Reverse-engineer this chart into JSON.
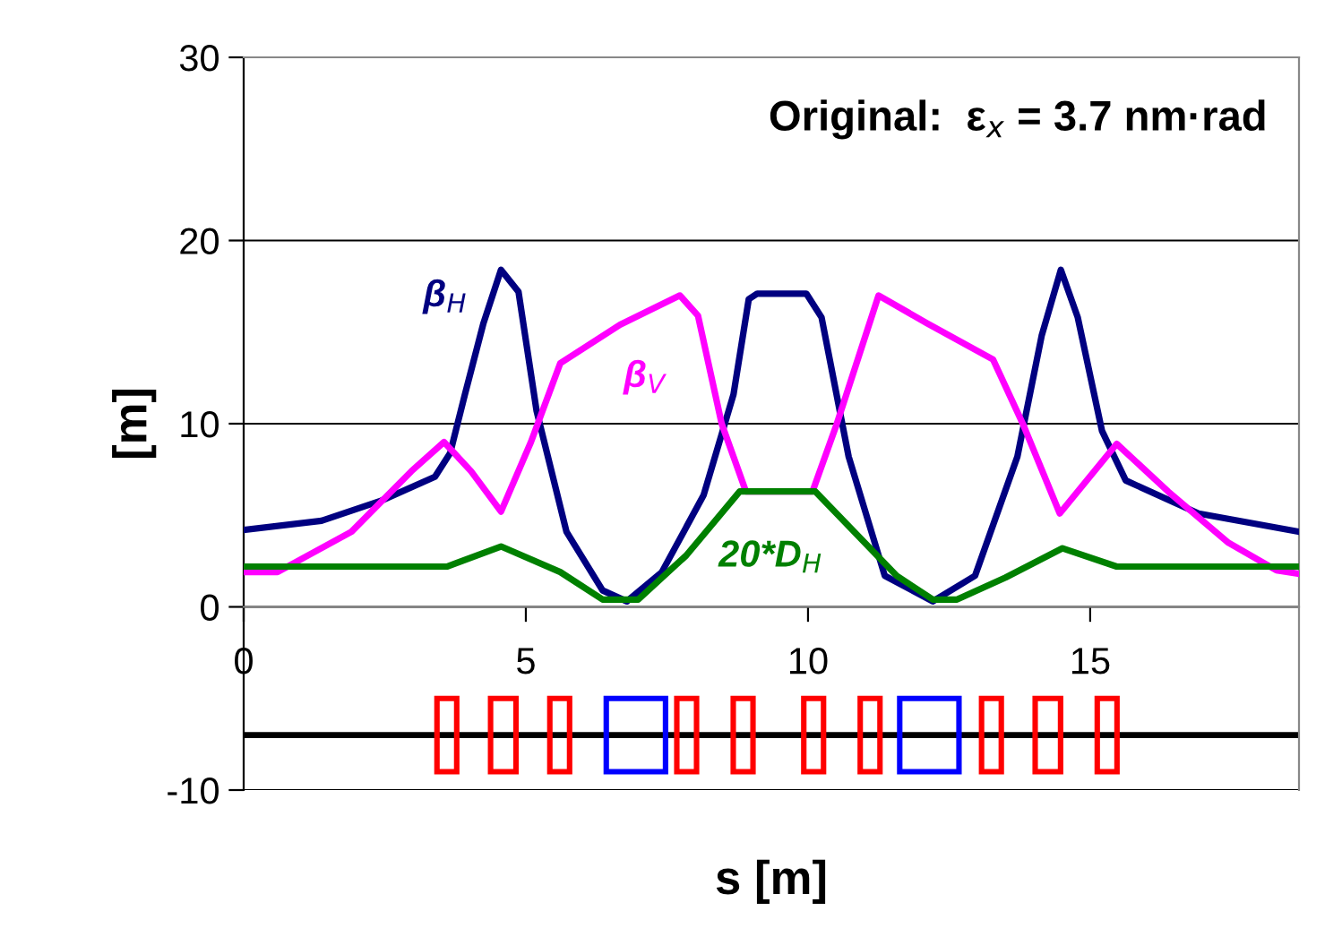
{
  "chart_data": {
    "type": "line",
    "xlabel": "s [m]",
    "ylabel": "[m]",
    "annotations": [
      "Original:  ε$_{x}$ = 3.7 nm·rad"
    ],
    "xlim": [
      0,
      18.7
    ],
    "ylim": [
      -10,
      30
    ],
    "xticks": [
      0,
      5,
      10,
      15
    ],
    "yticks": [
      -10,
      0,
      10,
      20,
      30
    ],
    "grid": "y",
    "marker": "none",
    "line_style": "solid",
    "ref_lines": [
      {
        "axis": "y",
        "value": -7,
        "color": "#000000"
      }
    ],
    "series": [
      {
        "name": "β$_{H}$",
        "color": "#000080",
        "x": [
          0,
          1.38,
          2.44,
          3.39,
          3.66,
          3.92,
          4.25,
          4.56,
          4.87,
          5.19,
          5.72,
          6.36,
          6.79,
          7.41,
          8.15,
          8.68,
          8.95,
          9.1,
          9.97,
          10.24,
          10.72,
          11.36,
          12.21,
          12.96,
          13.71,
          14.14,
          14.48,
          14.78,
          15.21,
          15.63,
          16.92,
          18.7
        ],
        "values": [
          4.2,
          4.7,
          5.8,
          7.1,
          8.4,
          11.6,
          15.5,
          18.4,
          17.2,
          10.7,
          4.1,
          0.9,
          0.3,
          1.9,
          6.1,
          11.6,
          16.8,
          17.1,
          17.1,
          15.8,
          8.2,
          1.7,
          0.3,
          1.7,
          8.2,
          14.8,
          18.4,
          15.8,
          9.6,
          6.9,
          5.1,
          4.1
        ]
      },
      {
        "name": "β$_{V}$",
        "color": "#ff00ff",
        "x": [
          0,
          0.6,
          1.91,
          2.97,
          3.55,
          4.03,
          4.56,
          5.09,
          5.61,
          6.67,
          7.73,
          8.05,
          8.47,
          8.9,
          10.08,
          10.5,
          11.25,
          12.1,
          13.28,
          13.82,
          14.46,
          15.47,
          16.38,
          17.45,
          18.3,
          18.7
        ],
        "values": [
          1.9,
          1.9,
          4.1,
          7.4,
          9.0,
          7.4,
          5.2,
          9.0,
          13.3,
          15.4,
          17.0,
          15.9,
          10.0,
          6.3,
          6.3,
          9.9,
          17.0,
          15.5,
          13.5,
          9.9,
          5.1,
          8.9,
          6.3,
          3.5,
          2.0,
          1.8
        ]
      },
      {
        "name": "20*D$_{H}$",
        "color": "#008000",
        "x": [
          0,
          3.6,
          4.56,
          5.61,
          6.36,
          6.99,
          7.84,
          8.79,
          10.13,
          11.57,
          12.21,
          12.64,
          13.5,
          14.51,
          15.47,
          18.7
        ],
        "values": [
          2.2,
          2.2,
          3.3,
          1.9,
          0.4,
          0.4,
          2.8,
          6.3,
          6.3,
          1.7,
          0.4,
          0.4,
          1.6,
          3.2,
          2.2,
          2.2
        ]
      }
    ]
  }
}
